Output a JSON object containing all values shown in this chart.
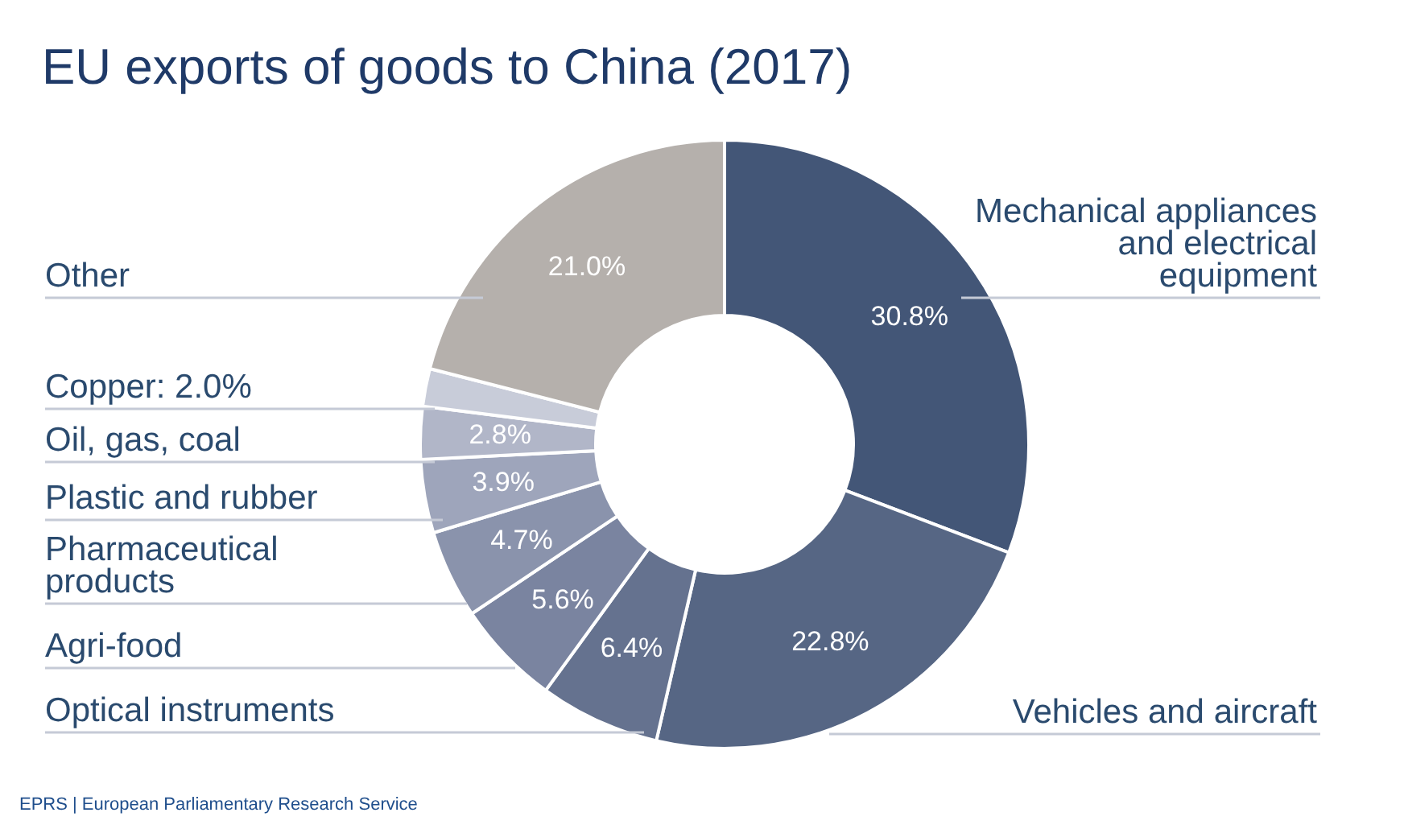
{
  "chart_data": {
    "type": "donut",
    "title": "EU exports of goods to China (2017)",
    "categories": [
      "Mechanical appliances and electrical equipment",
      "Vehicles and aircraft",
      "Optical instruments",
      "Agri-food",
      "Pharmaceutical products",
      "Plastic and rubber",
      "Oil, gas, coal",
      "Copper: 2.0%",
      "Other"
    ],
    "values": [
      30.8,
      22.8,
      6.4,
      5.6,
      4.7,
      3.9,
      2.8,
      2.0,
      21.0
    ],
    "colors": [
      "#435677",
      "#566684",
      "#65728f",
      "#7a84a0",
      "#8a93ac",
      "#9ea5bb",
      "#b1b6c8",
      "#c8ccd9",
      "#b5b0ac"
    ],
    "value_labels": [
      "30.8%",
      "22.8%",
      "6.4%",
      "5.6%",
      "4.7%",
      "3.9%",
      "2.8%",
      null,
      "21.0%"
    ],
    "annotations": [
      "EPRS | European Parliamentary Research Service"
    ]
  }
}
